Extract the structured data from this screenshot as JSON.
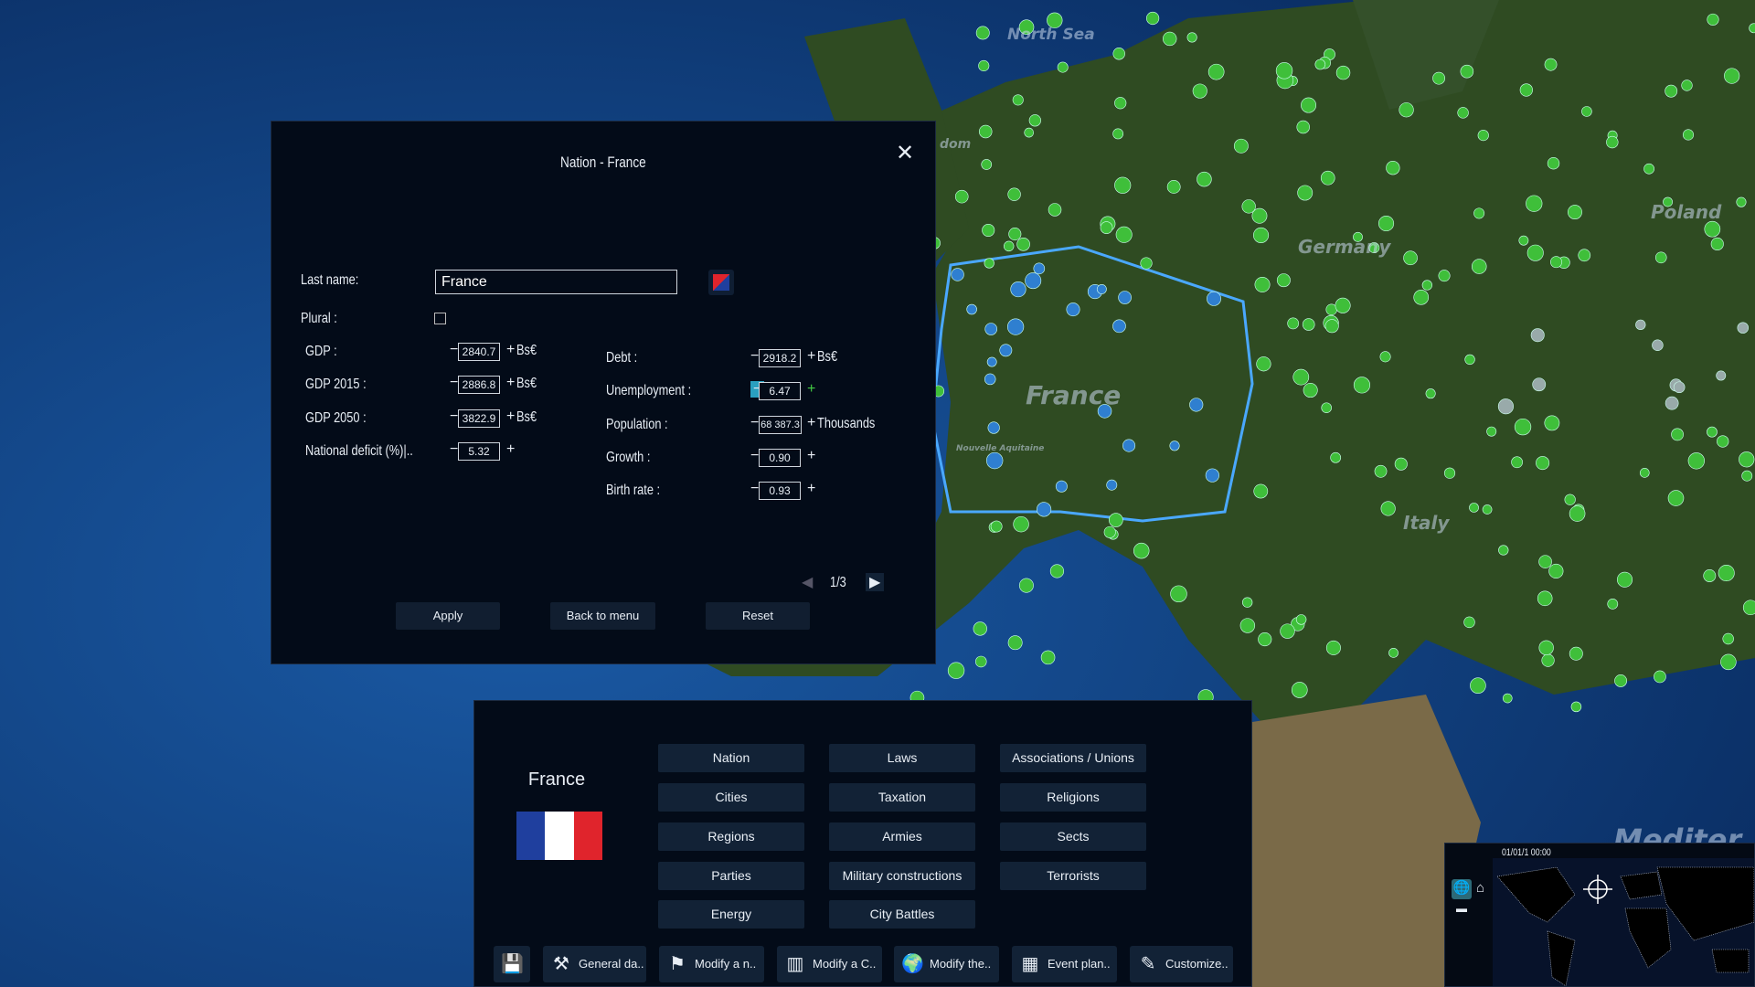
{
  "map": {
    "labels": [
      "North Sea",
      "dom",
      "Germany",
      "Poland",
      "France",
      "Nouvelle Aquitaine",
      "Italy",
      "Mediter"
    ],
    "colors": {
      "ocean": "#0d3a78",
      "land": "#2e4a1e",
      "city": "#3fbf3a",
      "selected_country_border": "#4aa8ff"
    }
  },
  "dialog": {
    "title": "Nation - France",
    "close_icon": "close-icon",
    "last_name": {
      "label": "Last name:",
      "value": "France"
    },
    "language_icon": "flag-language-icon",
    "plural": {
      "label": "Plural :",
      "checked": false
    },
    "left_fields": [
      {
        "label": "GDP :",
        "value": "2840.7",
        "unit": "Bs€"
      },
      {
        "label": "GDP 2015 :",
        "value": "2886.8",
        "unit": "Bs€"
      },
      {
        "label": "GDP 2050 :",
        "value": "3822.9",
        "unit": "Bs€"
      },
      {
        "label": "National deficit (%)|..",
        "value": "5.32",
        "unit": ""
      }
    ],
    "right_fields": [
      {
        "label": "Debt :",
        "value": "2918.2",
        "unit": "Bs€"
      },
      {
        "label": "Unemployment :",
        "value": "6.47",
        "unit": ""
      },
      {
        "label": "Population :",
        "value": "68 387.3",
        "unit": "Thousands"
      },
      {
        "label": "Growth :",
        "value": "0.90",
        "unit": ""
      },
      {
        "label": "Birth rate :",
        "value": "0.93",
        "unit": ""
      }
    ],
    "pager": "1/3",
    "minus": "−",
    "plus": "+",
    "buttons": {
      "apply": "Apply",
      "back": "Back to menu",
      "reset": "Reset"
    }
  },
  "bottom": {
    "country": "France",
    "flag_colors": [
      "#1f3f9e",
      "#ffffff",
      "#e0242c"
    ],
    "grid": [
      [
        "Nation",
        "Cities",
        "Regions",
        "Parties",
        "Energy"
      ],
      [
        "Laws",
        "Taxation",
        "Armies",
        "Military constructions",
        "City Battles"
      ],
      [
        "Associations / Unions",
        "Religions",
        "Sects",
        "Terrorists"
      ]
    ],
    "toolbar": [
      {
        "icon": "save-icon",
        "label": ""
      },
      {
        "icon": "tools-icon",
        "label": "General da.."
      },
      {
        "icon": "flag-icon",
        "label": "Modify a n.."
      },
      {
        "icon": "building-icon",
        "label": "Modify a C.."
      },
      {
        "icon": "globe-icon",
        "label": "Modify the.."
      },
      {
        "icon": "calendar-icon",
        "label": "Event plan.."
      },
      {
        "icon": "user-edit-icon",
        "label": "Customize.."
      }
    ]
  },
  "minimap": {
    "date": "01/01/1 00:00"
  }
}
